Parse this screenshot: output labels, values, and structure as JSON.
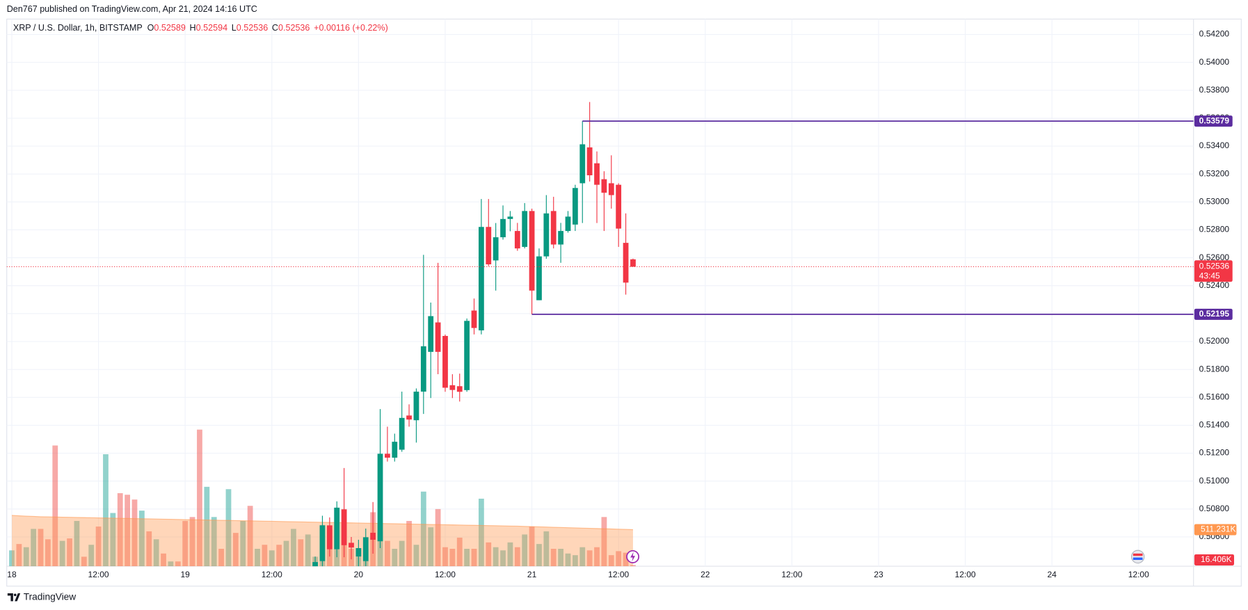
{
  "header": {
    "publisher": "Den767 published on TradingView.com, Apr 21, 2024 14:16 UTC"
  },
  "chart_data": {
    "type": "candlestick",
    "title": "XRP / U.S. Dollar, 1h, BITSTAMP",
    "ohlc_labels": [
      "O",
      "H",
      "L",
      "C"
    ],
    "change_label": "+0.00116 (+0.22%)",
    "countdown": "43:45",
    "grid": true,
    "up_color": "#089981",
    "down_color": "#f23645",
    "xlim": [
      -0.7,
      163.6
    ],
    "xticks": [
      {
        "value": 0,
        "label": "18"
      },
      {
        "value": 12,
        "label": "12:00"
      },
      {
        "value": 24,
        "label": "19"
      },
      {
        "value": 36,
        "label": "12:00"
      },
      {
        "value": 48,
        "label": "20"
      },
      {
        "value": 60,
        "label": "12:00"
      },
      {
        "value": 72,
        "label": "21"
      },
      {
        "value": 84,
        "label": "12:00"
      },
      {
        "value": 96,
        "label": "22"
      },
      {
        "value": 108,
        "label": "12:00"
      },
      {
        "value": 120,
        "label": "23"
      },
      {
        "value": 132,
        "label": "12:00"
      },
      {
        "value": 144,
        "label": "24"
      },
      {
        "value": 156,
        "label": "12:00"
      }
    ],
    "ylim": [
      0.5039,
      0.5431
    ],
    "yticks": [
      {
        "value": 0.506,
        "label": "0.50600"
      },
      {
        "value": 0.508,
        "label": "0.50800"
      },
      {
        "value": 0.51,
        "label": "0.51000"
      },
      {
        "value": 0.512,
        "label": "0.51200"
      },
      {
        "value": 0.514,
        "label": "0.51400"
      },
      {
        "value": 0.516,
        "label": "0.51600"
      },
      {
        "value": 0.518,
        "label": "0.51800"
      },
      {
        "value": 0.52,
        "label": "0.52000"
      },
      {
        "value": 0.522,
        "label": "0.52200"
      },
      {
        "value": 0.524,
        "label": "0.52400"
      },
      {
        "value": 0.526,
        "label": "0.52600"
      },
      {
        "value": 0.528,
        "label": "0.52800"
      },
      {
        "value": 0.53,
        "label": "0.53000"
      },
      {
        "value": 0.532,
        "label": "0.53200"
      },
      {
        "value": 0.534,
        "label": "0.53400"
      },
      {
        "value": 0.536,
        "label": "0.53600"
      },
      {
        "value": 0.538,
        "label": "0.53800"
      },
      {
        "value": 0.54,
        "label": "0.54000"
      },
      {
        "value": 0.542,
        "label": "0.54200"
      }
    ],
    "open": [
      null,
      null,
      null,
      null,
      null,
      null,
      null,
      null,
      null,
      null,
      null,
      null,
      null,
      null,
      null,
      null,
      null,
      null,
      null,
      null,
      null,
      null,
      null,
      null,
      null,
      null,
      null,
      null,
      null,
      null,
      null,
      null,
      null,
      null,
      null,
      null,
      null,
      null,
      null,
      null,
      null,
      null,
      0.5036,
      0.50427,
      0.50683,
      0.50512,
      0.50797,
      0.50558,
      0.5046,
      0.50427,
      0.5063,
      0.50569,
      0.51196,
      0.51168,
      0.51225,
      0.5147,
      0.51436,
      0.51641,
      0.51926,
      0.52137,
      0.5204,
      0.51687,
      0.5168,
      0.51652,
      0.52222,
      0.5208,
      0.52821,
      0.52581,
      0.52747,
      0.52878,
      0.52792,
      0.52678,
      0.52935,
      0.52296,
      0.5261,
      0.52935,
      0.52695,
      0.52792,
      0.52838,
      0.53134,
      0.53391,
      0.53277,
      0.53163,
      0.53134,
      0.53123,
      0.52707,
      0.52589
    ],
    "high": [
      null,
      null,
      null,
      null,
      null,
      null,
      null,
      null,
      null,
      null,
      null,
      null,
      null,
      null,
      null,
      null,
      null,
      null,
      null,
      null,
      null,
      null,
      null,
      null,
      null,
      null,
      null,
      null,
      null,
      null,
      null,
      null,
      null,
      null,
      null,
      null,
      null,
      null,
      null,
      null,
      null,
      null,
      0.5046,
      0.50752,
      0.5074,
      0.50855,
      0.51094,
      0.506,
      0.5058,
      0.5066,
      0.5085,
      0.51516,
      0.5139,
      0.5134,
      0.51641,
      0.5155,
      0.51664,
      0.52621,
      0.52279,
      0.52564,
      0.5205,
      0.51766,
      0.5177,
      0.52165,
      0.52308,
      0.53021,
      0.53021,
      0.52849,
      0.52975,
      0.52935,
      0.5285,
      0.52992,
      0.52952,
      0.52667,
      0.53049,
      0.53037,
      0.5285,
      0.52935,
      0.53123,
      0.53579,
      0.53716,
      0.53362,
      0.5322,
      0.53334,
      0.53134,
      0.52918,
      0.52594
    ],
    "low": [
      null,
      null,
      null,
      null,
      null,
      null,
      null,
      null,
      null,
      null,
      null,
      null,
      null,
      null,
      null,
      null,
      null,
      null,
      null,
      null,
      null,
      null,
      null,
      null,
      null,
      null,
      null,
      null,
      null,
      null,
      null,
      null,
      null,
      null,
      null,
      null,
      null,
      null,
      null,
      null,
      null,
      null,
      0.503,
      0.503,
      0.5046,
      0.50455,
      0.50455,
      0.5044,
      0.5038,
      0.5039,
      0.5048,
      0.5052,
      0.5114,
      0.5114,
      0.5121,
      0.5139,
      0.51276,
      0.51481,
      0.51595,
      0.51766,
      0.5164,
      0.51595,
      0.5157,
      0.5164,
      0.52051,
      0.52051,
      0.5254,
      0.52365,
      0.5273,
      0.5279,
      0.5265,
      0.52667,
      0.52195,
      0.52296,
      0.52593,
      0.52667,
      0.52564,
      0.5278,
      0.52792,
      0.52849,
      0.53146,
      0.52849,
      0.52792,
      0.52952,
      0.52678,
      0.52336,
      0.52536
    ],
    "close": [
      null,
      null,
      null,
      null,
      null,
      null,
      null,
      null,
      null,
      null,
      null,
      null,
      null,
      null,
      null,
      null,
      null,
      null,
      null,
      null,
      null,
      null,
      null,
      null,
      null,
      null,
      null,
      null,
      null,
      null,
      null,
      null,
      null,
      null,
      null,
      null,
      null,
      null,
      null,
      null,
      null,
      null,
      0.5042,
      0.50683,
      0.50512,
      0.50809,
      0.50541,
      0.50524,
      0.5052,
      0.50598,
      0.5058,
      0.51196,
      0.51168,
      0.51282,
      0.51453,
      0.51441,
      0.51641,
      0.51966,
      0.52182,
      0.51926,
      0.51669,
      0.51653,
      0.5164,
      0.52148,
      0.52097,
      0.52821,
      0.52553,
      0.52747,
      0.52878,
      0.52895,
      0.52667,
      0.52935,
      0.52365,
      0.5261,
      0.52918,
      0.52695,
      0.52792,
      0.52895,
      0.531,
      0.53413,
      0.53191,
      0.53123,
      0.53066,
      0.53049,
      0.52809,
      0.52422,
      0.52536
    ],
    "levels": [
      {
        "value": 0.53579,
        "start": 79,
        "color": "#5b2c9f"
      },
      {
        "value": 0.52195,
        "start": 72,
        "color": "#5b2c9f"
      }
    ],
    "volume": {
      "ylim": [
        0,
        7644
      ],
      "values": [
        222,
        311,
        266,
        522,
        522,
        377,
        1687,
        355,
        389,
        633,
        133,
        300,
        555,
        1565,
        744,
        1021,
        999,
        932,
        777,
        488,
        377,
        178,
        67,
        67,
        633,
        688,
        1909,
        1110,
        688,
        244,
        1077,
        466,
        633,
        844,
        244,
        300,
        222,
        300,
        355,
        522,
        377,
        444,
        133,
        577,
        522,
        821,
        799,
        244,
        244,
        244,
        755,
        488,
        355,
        244,
        355,
        633,
        300,
        1043,
        544,
        799,
        266,
        244,
        400,
        244,
        244,
        944,
        333,
        266,
        222,
        333,
        266,
        444,
        555,
        311,
        488,
        244,
        244,
        178,
        155,
        266,
        222,
        266,
        688,
        155,
        211,
        189,
        16.406
      ],
      "last_value_label": "16.406K",
      "colors": [
        "#26a69a",
        "#ef5350",
        "#26a69a",
        "#26a69a",
        "#ef5350",
        "#ef5350",
        "#ef5350",
        "#26a69a",
        "#ef5350",
        "#26a69a",
        "#ef5350",
        "#26a69a",
        "#ef5350",
        "#26a69a",
        "#26a69a",
        "#ef5350",
        "#ef5350",
        "#ef5350",
        "#26a69a",
        "#ef5350",
        "#26a69a",
        "#ef5350",
        "#26a69a",
        "#ef5350",
        "#ef5350",
        "#ef5350",
        "#ef5350",
        "#26a69a",
        "#26a69a",
        "#ef5350",
        "#26a69a",
        "#ef5350",
        "#26a69a",
        "#ef5350",
        "#26a69a",
        "#ef5350",
        "#26a69a",
        "#ef5350",
        "#26a69a",
        "#26a69a",
        "#ef5350",
        "#26a69a",
        "#26a69a",
        "#26a69a",
        "#ef5350",
        "#26a69a",
        "#ef5350",
        "#ef5350",
        "#26a69a",
        "#26a69a",
        "#ef5350",
        "#26a69a",
        "#ef5350",
        "#26a69a",
        "#26a69a",
        "#ef5350",
        "#26a69a",
        "#26a69a",
        "#26a69a",
        "#ef5350",
        "#ef5350",
        "#ef5350",
        "#ef5350",
        "#26a69a",
        "#ef5350",
        "#26a69a",
        "#ef5350",
        "#26a69a",
        "#26a69a",
        "#26a69a",
        "#ef5350",
        "#26a69a",
        "#ef5350",
        "#26a69a",
        "#26a69a",
        "#ef5350",
        "#26a69a",
        "#26a69a",
        "#26a69a",
        "#26a69a",
        "#ef5350",
        "#ef5350",
        "#ef5350",
        "#ef5350",
        "#ef5350",
        "#ef5350",
        "#ef5350"
      ],
      "ma": {
        "color": "#ff9850",
        "last_value_label": "511.231K",
        "values": [
          711,
          705,
          700,
          696,
          692,
          690,
          688,
          686,
          684,
          682,
          680,
          678,
          676,
          674,
          672,
          670,
          668,
          666,
          664,
          662,
          660,
          658,
          656,
          654,
          652,
          650,
          648,
          646,
          644,
          642,
          640,
          638,
          636,
          634,
          632,
          630,
          628,
          626,
          624,
          622,
          620,
          618,
          616,
          614,
          612,
          610,
          608,
          606,
          604,
          602,
          600,
          598,
          596,
          594,
          592,
          590,
          588,
          586,
          584,
          582,
          580,
          578,
          576,
          574,
          572,
          570,
          568,
          566,
          564,
          562,
          560,
          557,
          554,
          551,
          548,
          545,
          542,
          539,
          536,
          533,
          530,
          527,
          524,
          521,
          518,
          515,
          511.231
        ]
      }
    }
  },
  "footer": {
    "brand": "TradingView"
  }
}
